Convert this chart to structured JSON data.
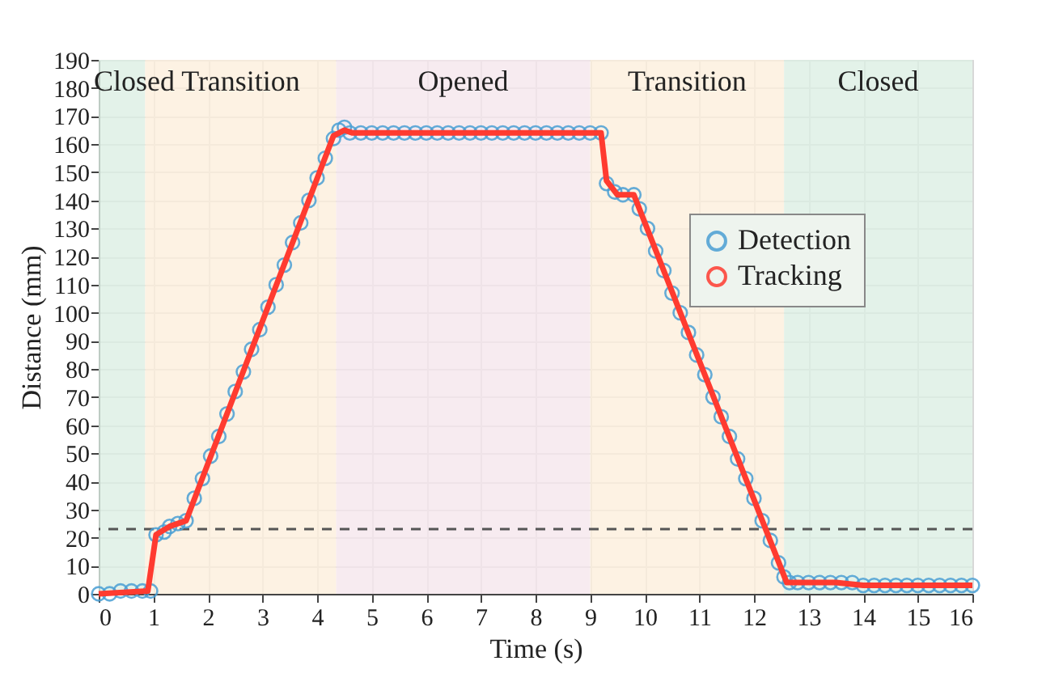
{
  "chart_data": {
    "type": "line",
    "xlabel": "Time (s)",
    "ylabel": "Distance (mm)",
    "xlim": [
      0,
      16
    ],
    "xticks": [
      0,
      1,
      2,
      3,
      4,
      5,
      6,
      7,
      8,
      9,
      10,
      11,
      12,
      13,
      14,
      15,
      16
    ],
    "ylim": [
      0,
      190
    ],
    "yticks": [
      0,
      10,
      20,
      30,
      40,
      50,
      60,
      70,
      80,
      90,
      100,
      110,
      120,
      130,
      140,
      150,
      160,
      170,
      180,
      190
    ],
    "grid": true,
    "legend": "top right",
    "series": [
      {
        "name": "Detection",
        "type": "scatter",
        "marker": "circle",
        "color": "#4a9fd4",
        "x": [
          0,
          0.2,
          0.4,
          0.6,
          0.8,
          0.95,
          1.05,
          1.2,
          1.3,
          1.45,
          1.6,
          1.75,
          1.9,
          2.05,
          2.2,
          2.35,
          2.5,
          2.65,
          2.8,
          2.95,
          3.1,
          3.25,
          3.4,
          3.55,
          3.7,
          3.85,
          4.0,
          4.15,
          4.3,
          4.4,
          4.5,
          4.6,
          4.8,
          5.0,
          5.2,
          5.4,
          5.6,
          5.8,
          6.0,
          6.2,
          6.4,
          6.6,
          6.8,
          7.0,
          7.2,
          7.4,
          7.6,
          7.8,
          8.0,
          8.2,
          8.4,
          8.6,
          8.8,
          9.0,
          9.2,
          9.3,
          9.45,
          9.6,
          9.8,
          9.9,
          10.05,
          10.2,
          10.35,
          10.5,
          10.65,
          10.8,
          10.95,
          11.1,
          11.25,
          11.4,
          11.55,
          11.7,
          11.85,
          12.0,
          12.15,
          12.3,
          12.45,
          12.55,
          12.65,
          12.8,
          13.0,
          13.2,
          13.4,
          13.6,
          13.8,
          14.0,
          14.2,
          14.4,
          14.6,
          14.8,
          15.0,
          15.2,
          15.4,
          15.6,
          15.8,
          16.0
        ],
        "values": [
          0,
          0,
          1,
          1,
          1,
          1,
          21,
          22,
          24,
          25,
          26,
          34,
          41,
          49,
          56,
          64,
          72,
          79,
          87,
          94,
          102,
          110,
          117,
          125,
          132,
          140,
          148,
          155,
          162,
          165,
          166,
          164,
          164,
          164,
          164,
          164,
          164,
          164,
          164,
          164,
          164,
          164,
          164,
          164,
          164,
          164,
          164,
          164,
          164,
          164,
          164,
          164,
          164,
          164,
          164,
          146,
          143,
          142,
          142,
          137,
          130,
          122,
          115,
          107,
          100,
          93,
          85,
          78,
          70,
          63,
          56,
          48,
          41,
          34,
          26,
          19,
          11,
          6,
          4,
          4,
          4,
          4,
          4,
          4,
          4,
          3,
          3,
          3,
          3,
          3,
          3,
          3,
          3,
          3,
          3,
          3
        ]
      },
      {
        "name": "Tracking",
        "type": "line",
        "line_style": "solid",
        "color": "#ff3b30",
        "x": [
          0,
          0.9,
          1.05,
          1.3,
          1.6,
          4.3,
          4.5,
          4.65,
          9.2,
          9.3,
          9.5,
          9.8,
          12.6,
          13.5,
          14.0,
          16.0
        ],
        "values": [
          0,
          1,
          21,
          24,
          26,
          163,
          165,
          164,
          164,
          147,
          142,
          142,
          4,
          4,
          3,
          3
        ]
      }
    ],
    "ref_lines": [
      {
        "axis": "y",
        "value": 23,
        "line_style": "dashed",
        "color": "#555555"
      }
    ],
    "bands": [
      {
        "axis": "x",
        "from": 0,
        "to": 0.85,
        "label": "Closed",
        "color": "#dcefe4"
      },
      {
        "axis": "x",
        "from": 0.85,
        "to": 4.35,
        "label": "Transition",
        "color": "#fcefdc"
      },
      {
        "axis": "x",
        "from": 4.35,
        "to": 9.0,
        "label": "Opened",
        "color": "#f5e6ec"
      },
      {
        "axis": "x",
        "from": 9.0,
        "to": 12.55,
        "label": "Transition",
        "color": "#fcefdc"
      },
      {
        "axis": "x",
        "from": 12.55,
        "to": 16,
        "label": "Closed",
        "color": "#dcefe4"
      }
    ]
  }
}
